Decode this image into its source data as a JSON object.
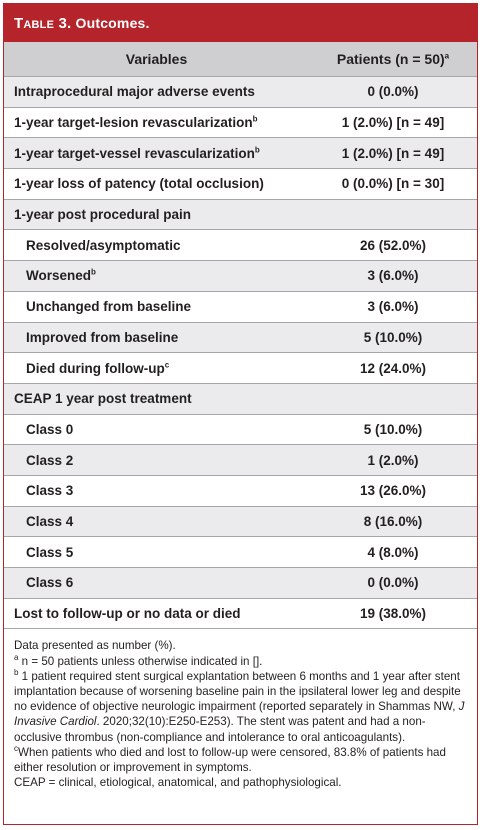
{
  "title": {
    "label": "Table 3.",
    "text": "Outcomes."
  },
  "header": {
    "variables": "Variables",
    "patients": "Patients (n = 50)",
    "patients_sup": "a"
  },
  "rows": [
    {
      "label": "Intraprocedural major adverse events",
      "sup": "",
      "value": "0 (0.0%)",
      "indent": false
    },
    {
      "label": "1-year target-lesion revascularization",
      "sup": "b",
      "value": "1 (2.0%) [n = 49]",
      "indent": false
    },
    {
      "label": "1-year target-vessel revascularization",
      "sup": "b",
      "value": "1 (2.0%) [n = 49]",
      "indent": false
    },
    {
      "label": "1-year loss of patency (total occlusion)",
      "sup": "",
      "value": "0 (0.0%) [n = 30]",
      "indent": false
    },
    {
      "label": "1-year post procedural pain",
      "sup": "",
      "value": "",
      "indent": false
    },
    {
      "label": "Resolved/asymptomatic",
      "sup": "",
      "value": "26 (52.0%)",
      "indent": true
    },
    {
      "label": "Worsened",
      "sup": "b",
      "value": "3 (6.0%)",
      "indent": true
    },
    {
      "label": "Unchanged from baseline",
      "sup": "",
      "value": "3 (6.0%)",
      "indent": true
    },
    {
      "label": "Improved from baseline",
      "sup": "",
      "value": "5 (10.0%)",
      "indent": true
    },
    {
      "label": "Died during follow-up",
      "sup": "c",
      "value": "12 (24.0%)",
      "indent": true
    },
    {
      "label": "CEAP 1 year post treatment",
      "sup": "",
      "value": "",
      "indent": false
    },
    {
      "label": "Class 0",
      "sup": "",
      "value": "5 (10.0%)",
      "indent": true
    },
    {
      "label": "Class 2",
      "sup": "",
      "value": "1 (2.0%)",
      "indent": true
    },
    {
      "label": "Class 3",
      "sup": "",
      "value": "13 (26.0%)",
      "indent": true
    },
    {
      "label": "Class 4",
      "sup": "",
      "value": "8 (16.0%)",
      "indent": true
    },
    {
      "label": "Class 5",
      "sup": "",
      "value": "4 (8.0%)",
      "indent": true
    },
    {
      "label": "Class 6",
      "sup": "",
      "value": "0 (0.0%)",
      "indent": true
    },
    {
      "label": "Lost to follow-up or no data or died",
      "sup": "",
      "value": "19 (38.0%)",
      "indent": false
    }
  ],
  "footnotes": {
    "data_note": "Data presented as number (%).",
    "a_sup": "a",
    "a_text": " n = 50 patients unless otherwise indicated in [].",
    "b_sup": "b",
    "b_text_before": " 1 patient required stent surgical explantation between 6 months and 1 year after stent implantation because of worsening baseline pain in the ipsilateral lower leg and despite no evidence of objective neurologic impairment (reported separately in Shammas NW, ",
    "b_journal": "J Invasive Cardiol",
    "b_text_after": ". 2020;32(10):E250-E253). The stent was patent and had a non-occlusive thrombus (non-compliance and intolerance to oral anticoagulants).",
    "c_sup": "c",
    "c_text": "When patients who died and lost to follow-up were censored, 83.8% of patients had either resolution or improvement in symptoms.",
    "ceap": "CEAP = clinical, etiological, anatomical, and pathophysiological."
  }
}
